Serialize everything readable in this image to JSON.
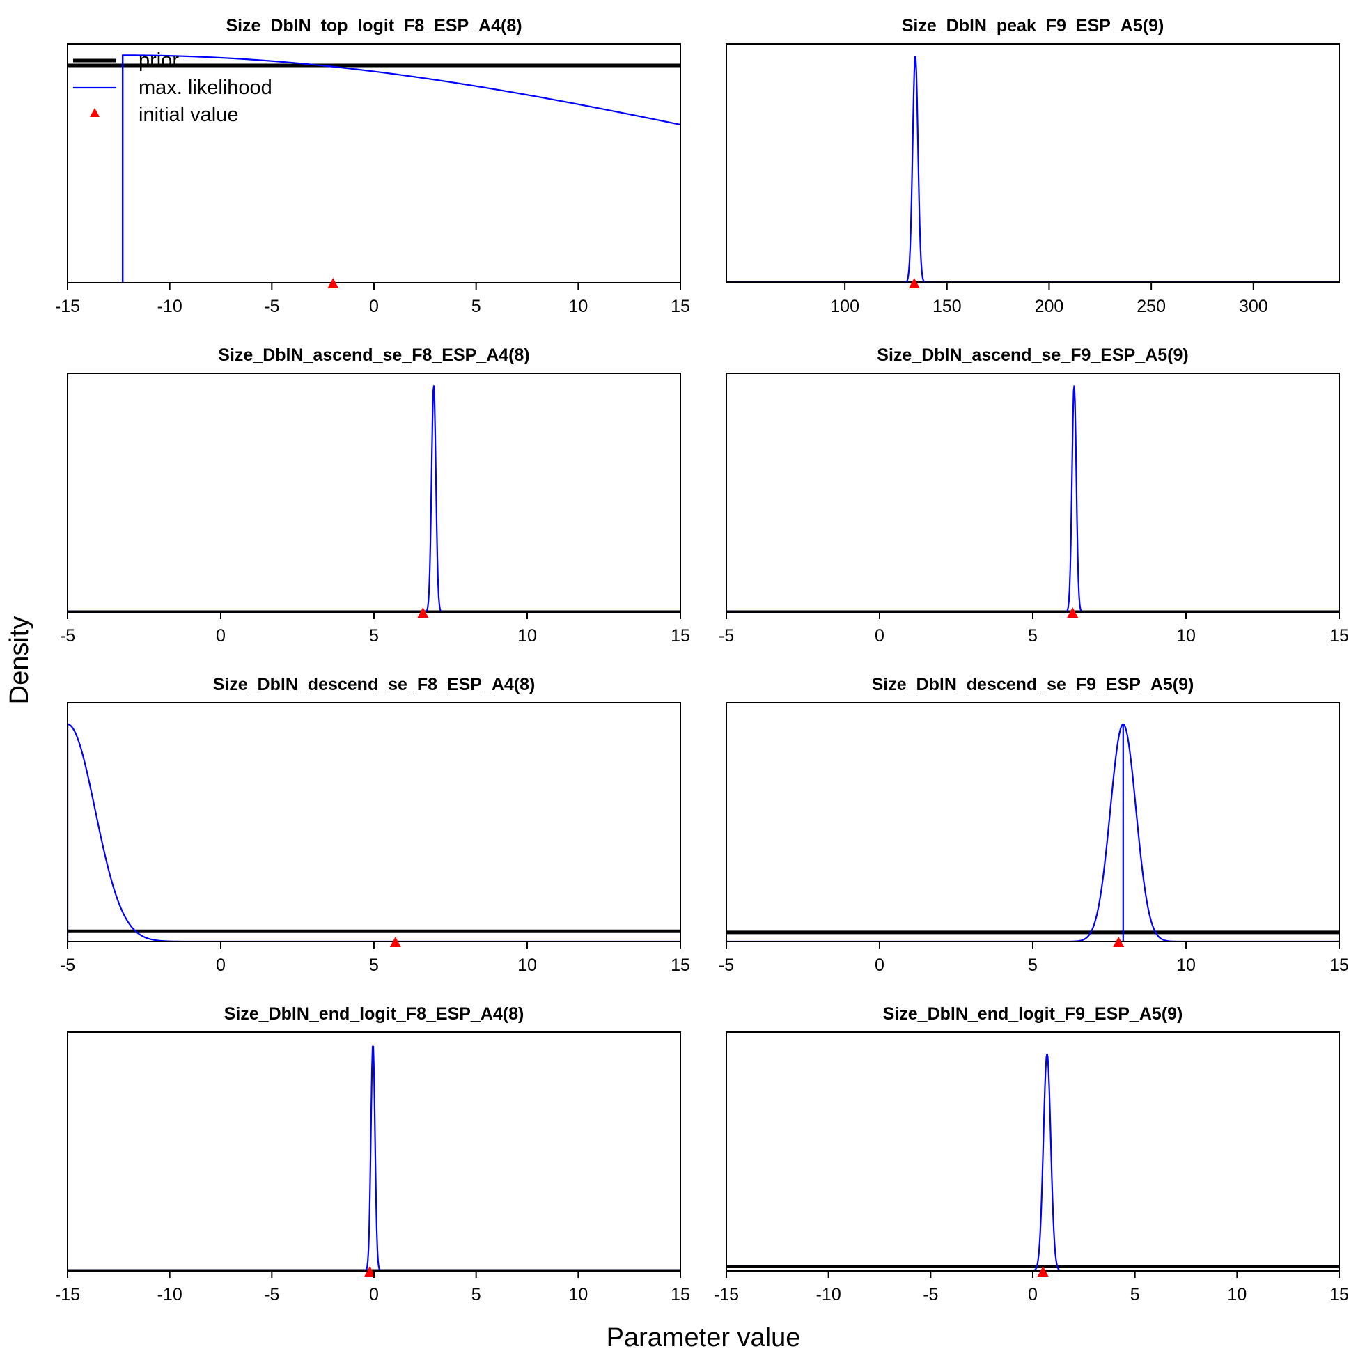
{
  "figure": {
    "ylabel": "Density",
    "xlabel": "Parameter value",
    "legend": {
      "placement": "top-left",
      "panel_index": 0,
      "entries": [
        {
          "label": "prior",
          "color": "#000000",
          "symbol": "thick-line"
        },
        {
          "label": "max. likelihood",
          "color": "#0000ff",
          "symbol": "line"
        },
        {
          "label": "initial value",
          "color": "#ff0000",
          "symbol": "triangle"
        }
      ]
    },
    "colors": {
      "prior": "#000000",
      "likelihood": "#0000ff",
      "initial": "#ff0000"
    }
  },
  "chart_data": [
    {
      "type": "line",
      "title": "Size_DblN_top_logit_F8_ESP_A4(8)",
      "xlim": [
        -15,
        15
      ],
      "xticks": [
        -15,
        -10,
        -5,
        0,
        5,
        10,
        15
      ],
      "ylim": [
        0,
        1.05
      ],
      "prior": {
        "kind": "flat",
        "y": 0.955
      },
      "likelihood": {
        "kind": "half-gauss",
        "mean": -12.3,
        "sd": 32,
        "peak": 1.0
      },
      "mle_line": -12.3,
      "initial": -2
    },
    {
      "type": "line",
      "title": "Size_DblN_peak_F9_ESP_A5(9)",
      "xlim": [
        42,
        342
      ],
      "xticks": [
        100,
        150,
        200,
        250,
        300
      ],
      "ylim": [
        0,
        1.05
      ],
      "prior": {
        "kind": "flat",
        "y": 0.0
      },
      "likelihood": {
        "kind": "gauss",
        "mean": 134.5,
        "sd": 1.3,
        "peak": 1.0
      },
      "mle_line": null,
      "initial": 134
    },
    {
      "type": "line",
      "title": "Size_DblN_ascend_se_F8_ESP_A4(8)",
      "xlim": [
        -5,
        15
      ],
      "xticks": [
        -5,
        0,
        5,
        10,
        15
      ],
      "ylim": [
        0,
        1.05
      ],
      "prior": {
        "kind": "flat",
        "y": 0.0
      },
      "likelihood": {
        "kind": "gauss",
        "mean": 6.95,
        "sd": 0.07,
        "peak": 1.0
      },
      "mle_line": null,
      "initial": 6.6
    },
    {
      "type": "line",
      "title": "Size_DblN_ascend_se_F9_ESP_A5(9)",
      "xlim": [
        -5,
        15
      ],
      "xticks": [
        -5,
        0,
        5,
        10,
        15
      ],
      "ylim": [
        0,
        1.05
      ],
      "prior": {
        "kind": "flat",
        "y": 0.0
      },
      "likelihood": {
        "kind": "gauss",
        "mean": 6.35,
        "sd": 0.07,
        "peak": 1.0
      },
      "mle_line": null,
      "initial": 6.3
    },
    {
      "type": "line",
      "title": "Size_DblN_descend_se_F8_ESP_A4(8)",
      "xlim": [
        -5,
        15
      ],
      "xticks": [
        -5,
        0,
        5,
        10,
        15
      ],
      "ylim": [
        0,
        1.05
      ],
      "prior": {
        "kind": "flat",
        "y": 0.045
      },
      "likelihood": {
        "kind": "half-gauss",
        "mean": -5.0,
        "sd": 0.9,
        "peak": 0.955
      },
      "mle_line": -5.0,
      "initial": 5.7
    },
    {
      "type": "line",
      "title": "Size_DblN_descend_se_F9_ESP_A5(9)",
      "xlim": [
        -5,
        15
      ],
      "xticks": [
        -5,
        0,
        5,
        10,
        15
      ],
      "ylim": [
        0,
        1.05
      ],
      "prior": {
        "kind": "flat",
        "y": 0.04
      },
      "likelihood": {
        "kind": "gauss",
        "mean": 7.95,
        "sd": 0.42,
        "peak": 0.955
      },
      "mle_line": 7.95,
      "initial": 7.8
    },
    {
      "type": "line",
      "title": "Size_DblN_end_logit_F8_ESP_A4(8)",
      "xlim": [
        -15,
        15
      ],
      "xticks": [
        -15,
        -10,
        -5,
        0,
        5,
        10,
        15
      ],
      "ylim": [
        0,
        1.05
      ],
      "prior": {
        "kind": "flat",
        "y": 0.0
      },
      "likelihood": {
        "kind": "gauss",
        "mean": -0.05,
        "sd": 0.1,
        "peak": 1.0
      },
      "mle_line": null,
      "initial": -0.2
    },
    {
      "type": "line",
      "title": "Size_DblN_end_logit_F9_ESP_A5(9)",
      "xlim": [
        -15,
        15
      ],
      "xticks": [
        -15,
        -10,
        -5,
        0,
        5,
        10,
        15
      ],
      "ylim": [
        0,
        1.05
      ],
      "prior": {
        "kind": "flat",
        "y": 0.02
      },
      "likelihood": {
        "kind": "gauss",
        "mean": 0.7,
        "sd": 0.18,
        "peak": 0.955
      },
      "mle_line": null,
      "initial": 0.5
    }
  ]
}
